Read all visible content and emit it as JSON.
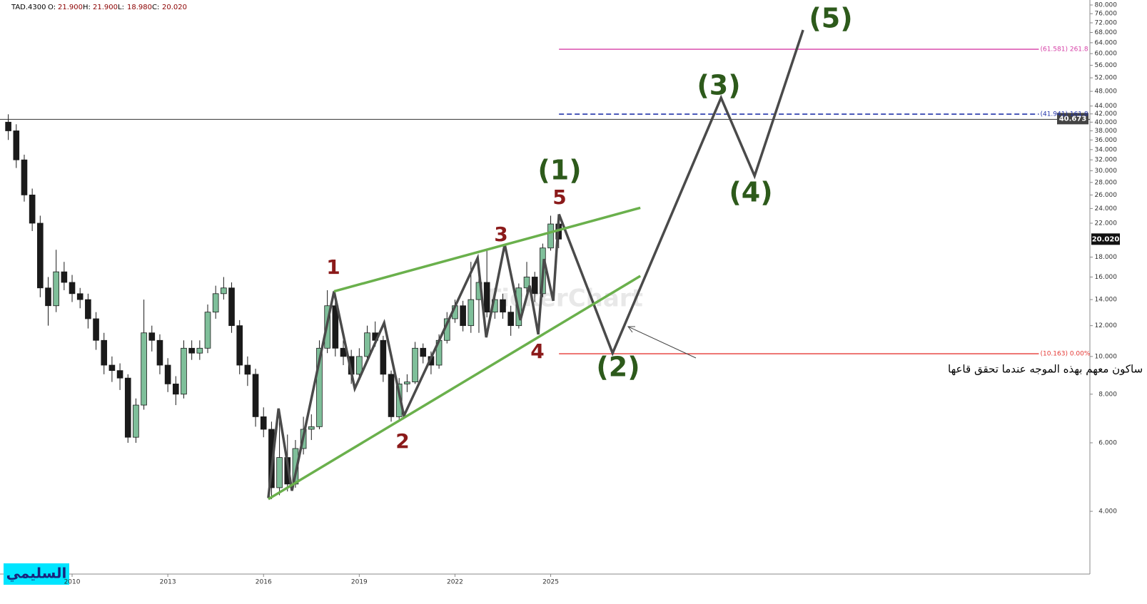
{
  "chart_data": {
    "type": "candlestick",
    "header": {
      "symbol": "TAD.4300",
      "o_label": "O:",
      "o": "21.900",
      "h_label": "H:",
      "h": "21.900",
      "l_label": "L:",
      "l": "18.980",
      "c_label": "C:",
      "c": "20.020"
    },
    "x": [
      2008.0,
      2008.25,
      2008.5,
      2008.75,
      2009.0,
      2009.25,
      2009.5,
      2009.75,
      2010.0,
      2010.25,
      2010.5,
      2010.75,
      2011.0,
      2011.25,
      2011.5,
      2011.75,
      2012.0,
      2012.25,
      2012.5,
      2012.75,
      2013.0,
      2013.25,
      2013.5,
      2013.75,
      2014.0,
      2014.25,
      2014.5,
      2014.75,
      2015.0,
      2015.25,
      2015.5,
      2015.75,
      2016.0,
      2016.25,
      2016.5,
      2016.75,
      2017.0,
      2017.25,
      2017.5,
      2017.75,
      2018.0,
      2018.25,
      2018.5,
      2018.75,
      2019.0,
      2019.25,
      2019.5,
      2019.75,
      2020.0,
      2020.25,
      2020.5,
      2020.75,
      2021.0,
      2021.25,
      2021.5,
      2021.75,
      2022.0,
      2022.25,
      2022.5,
      2022.75,
      2023.0,
      2023.25,
      2023.5,
      2023.75,
      2024.0,
      2024.25,
      2024.5,
      2024.75,
      2025.0,
      2025.25
    ],
    "open": [
      40,
      38,
      32,
      26,
      22,
      15,
      13.5,
      16.5,
      15.5,
      14.5,
      14,
      12.5,
      11,
      9.5,
      9.2,
      8.8,
      6.2,
      7.5,
      11.5,
      11,
      9.5,
      8.5,
      8,
      10.5,
      10.2,
      10.5,
      13,
      14.5,
      15,
      12,
      9.5,
      9,
      7,
      6.5,
      4.6,
      5.5,
      4.7,
      5.8,
      6.5,
      6.6,
      10.5,
      13.5,
      10.5,
      10,
      9,
      10,
      11.5,
      11,
      9,
      7,
      8.5,
      8.6,
      10.5,
      10,
      9.5,
      11,
      12.5,
      13.5,
      12,
      14,
      15.5,
      13,
      14,
      13,
      12,
      15,
      16,
      14.5,
      19,
      21.9
    ],
    "high": [
      41.9,
      39.5,
      33,
      27,
      23,
      16,
      18.8,
      17.5,
      16.2,
      15,
      14.5,
      13,
      11.5,
      10,
      9.6,
      9,
      7.8,
      14,
      12,
      11.4,
      9.9,
      8.9,
      11,
      11,
      11,
      13.6,
      15.2,
      16,
      15.5,
      12.4,
      10,
      9.3,
      7.4,
      6.8,
      7.3,
      6.3,
      6.1,
      7,
      7.1,
      11,
      14.8,
      14.5,
      11,
      10.4,
      10.5,
      12,
      12.3,
      11.3,
      9.2,
      8.8,
      9,
      10.9,
      10.8,
      10.3,
      11.4,
      13,
      14,
      13.9,
      17.5,
      16,
      18.8,
      15,
      14.5,
      13.5,
      15.4,
      17.5,
      16.5,
      19.5,
      23,
      21.9
    ],
    "low": [
      36,
      30.5,
      25,
      21,
      14.2,
      12,
      13,
      14.8,
      13.8,
      13.3,
      11.8,
      10.4,
      9,
      8.6,
      8.2,
      6,
      6,
      7.3,
      10.3,
      9,
      8.1,
      7.5,
      7.8,
      9.8,
      9.8,
      10.2,
      12.5,
      14,
      11.5,
      9,
      8.4,
      6.6,
      6.2,
      4.3,
      4.4,
      4.5,
      4.6,
      5.6,
      6.1,
      6.5,
      10.2,
      10,
      9.5,
      8.5,
      8.7,
      9.8,
      10.6,
      8.6,
      6.8,
      6.9,
      8.1,
      8.5,
      9.6,
      9,
      9.3,
      10.8,
      12.2,
      11.6,
      11.5,
      11.5,
      12.6,
      12.5,
      12.5,
      11.3,
      11.8,
      14.5,
      13.8,
      14.2,
      18.7,
      18.98
    ],
    "close": [
      38,
      32,
      26,
      22,
      15,
      13.5,
      16.5,
      15.5,
      14.5,
      14,
      12.5,
      11,
      9.5,
      9.2,
      8.8,
      6.2,
      7.5,
      11.5,
      11,
      9.5,
      8.5,
      8,
      10.5,
      10.2,
      10.5,
      13,
      14.5,
      15,
      12,
      9.5,
      9,
      7,
      6.5,
      4.6,
      5.5,
      4.7,
      5.8,
      6.5,
      6.6,
      10.5,
      13.5,
      10.5,
      10,
      9,
      10,
      11.5,
      11,
      9,
      7,
      8.5,
      8.6,
      10.5,
      10,
      9.5,
      11,
      12.5,
      13.5,
      12,
      14,
      15.5,
      13,
      14,
      13,
      12,
      15,
      16,
      14.5,
      19,
      21.9,
      20.02
    ],
    "up_color": "#7fbf9a",
    "down_color": "#1a1a1a",
    "log_scale": true,
    "xlim": [
      2007.74,
      2041.9
    ],
    "xticks": [
      2010,
      2013,
      2016,
      2019,
      2022,
      2025
    ],
    "ylim": [
      2.76,
      82.4
    ],
    "yticks": [
      {
        "value": 80,
        "label": "80.000"
      },
      {
        "value": 76,
        "label": "76.000"
      },
      {
        "value": 72,
        "label": "72.000"
      },
      {
        "value": 68,
        "label": "68.000"
      },
      {
        "value": 64,
        "label": "64.000"
      },
      {
        "value": 60,
        "label": "60.000"
      },
      {
        "value": 56,
        "label": "56.000"
      },
      {
        "value": 52,
        "label": "52.000"
      },
      {
        "value": 48,
        "label": "48.000"
      },
      {
        "value": 44,
        "label": "44.000"
      },
      {
        "value": 42,
        "label": "42.000"
      },
      {
        "value": 40,
        "label": "40.000"
      },
      {
        "value": 38,
        "label": "38.000"
      },
      {
        "value": 36,
        "label": "36.000"
      },
      {
        "value": 34,
        "label": "34.000"
      },
      {
        "value": 32,
        "label": "32.000"
      },
      {
        "value": 30,
        "label": "30.000"
      },
      {
        "value": 28,
        "label": "28.000"
      },
      {
        "value": 26,
        "label": "26.000"
      },
      {
        "value": 24,
        "label": "24.000"
      },
      {
        "value": 22,
        "label": "22.000"
      },
      {
        "value": 18,
        "label": "18.000"
      },
      {
        "value": 16,
        "label": "16.000"
      },
      {
        "value": 14,
        "label": "14.000"
      },
      {
        "value": 12,
        "label": "12.000"
      },
      {
        "value": 10,
        "label": "10.000"
      },
      {
        "value": 8,
        "label": "8.000"
      },
      {
        "value": 6,
        "label": "6.000"
      },
      {
        "value": 4,
        "label": "4.000"
      }
    ],
    "levels": [
      {
        "value": 61.581,
        "label": "(61.581) 261.8",
        "color": "#d63fa6",
        "dashed": false
      },
      {
        "value": 41.941,
        "label": "(41.941) 161.8",
        "color": "#2233aa",
        "dashed": true
      },
      {
        "value": 10.163,
        "label": "(10.163) 0.00%",
        "color": "#e53935",
        "dashed": false
      }
    ],
    "level_start": 2025.26,
    "level_end": 2040.3,
    "price_line": 40.673,
    "last_price": {
      "value": 20.02,
      "label": "20.020"
    },
    "drawings": [
      {
        "color": "#4a4a4a",
        "x": [
          2016.15,
          2016.47,
          2016.89,
          2018.21,
          2018.86,
          2019.78,
          2020.4,
          2022.71,
          2022.98,
          2023.56,
          2024.05,
          2024.34,
          2024.61,
          2024.79,
          2025.08,
          2025.26
        ],
        "y": [
          4.33,
          7.35,
          4.52,
          14.7,
          8.27,
          12.2,
          7.04,
          17.9,
          11.2,
          19.4,
          12.4,
          15.2,
          11.4,
          17.8,
          13.9,
          23.2
        ]
      },
      {
        "color": "#4a4a4a",
        "x": [
          2025.26,
          2026.94,
          2030.34,
          2031.39,
          2032.91
        ],
        "y": [
          23.2,
          10.2,
          46.2,
          29.1,
          69.0
        ]
      },
      {
        "color": "#6ab04c",
        "x": [
          2018.21,
          2027.81
        ],
        "y": [
          14.7,
          24.1
        ]
      },
      {
        "color": "#6ab04c",
        "x": [
          2016.15,
          2027.81
        ],
        "y": [
          4.3,
          16.1
        ]
      }
    ],
    "minor_waves": [
      "1",
      "2",
      "3",
      "4",
      "5"
    ],
    "major_waves": [
      "(1)",
      "(2)",
      "(3)",
      "(4)",
      "(5)"
    ],
    "annotation": "إن الله احياني ساكون معهم بهذه الموجه عندما تحقق قاعها",
    "watermark": "السليمي",
    "faint_watermark": "TickerChart"
  }
}
